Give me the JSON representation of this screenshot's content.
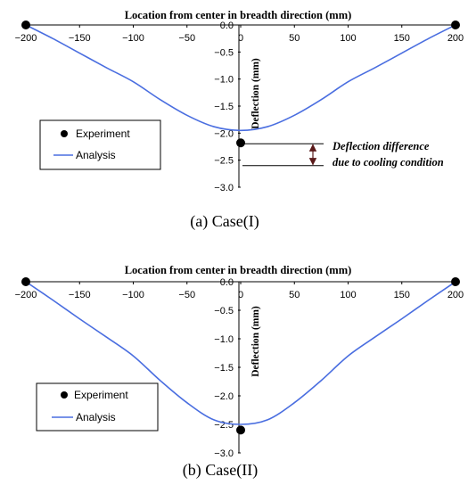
{
  "chart_data": [
    {
      "type": "line",
      "title": "Location from center in breadth direction (mm)",
      "ylabel": "Deflection (mm)",
      "caption": "(a)  Case(I)",
      "xlim": [
        -200,
        200
      ],
      "ylim": [
        -3.0,
        0.0
      ],
      "x_ticks": [
        "-200",
        "-150",
        "-100",
        "-50",
        "0",
        "50",
        "100",
        "150",
        "200"
      ],
      "y_ticks": [
        "0.0",
        "-0.5",
        "-1.0",
        "-1.5",
        "-2.0",
        "-2.5",
        "-3.0"
      ],
      "grid": false,
      "legend": {
        "placement": "left",
        "entries": [
          "Experiment",
          "Analysis"
        ]
      },
      "series": [
        {
          "name": "Analysis",
          "x": [
            -200,
            -175,
            -150,
            -125,
            -100,
            -75,
            -50,
            -25,
            0,
            25,
            50,
            75,
            100,
            125,
            150,
            175,
            200
          ],
          "y": [
            0.0,
            -0.25,
            -0.52,
            -0.79,
            -1.05,
            -1.38,
            -1.67,
            -1.88,
            -1.95,
            -1.88,
            -1.67,
            -1.38,
            -1.05,
            -0.79,
            -0.52,
            -0.25,
            0.0
          ]
        },
        {
          "name": "Experiment",
          "x": [
            -200,
            0,
            200
          ],
          "y": [
            0.0,
            -2.18,
            0.0
          ]
        }
      ],
      "annotation": {
        "line1": "Deflection difference",
        "line2": "due to cooling condition",
        "from_y": -2.18,
        "to_y": -2.6
      },
      "colors": {
        "analysis": "#4a6ee0",
        "experiment": "#000000",
        "arrow": "#5a1a1a"
      }
    },
    {
      "type": "line",
      "title": "Location from center in breadth direction (mm)",
      "ylabel": "Deflection (mm)",
      "caption": "(b)  Case(II)",
      "xlim": [
        -200,
        200
      ],
      "ylim": [
        -3.0,
        0.0
      ],
      "x_ticks": [
        "-200",
        "-150",
        "-100",
        "-50",
        "0",
        "50",
        "100",
        "150",
        "200"
      ],
      "y_ticks": [
        "0.0",
        "-0.5",
        "-1.0",
        "-1.5",
        "-2.0",
        "-2.5",
        "-3.0"
      ],
      "grid": false,
      "legend": {
        "placement": "bottom-left",
        "entries": [
          "Experiment",
          "Analysis"
        ]
      },
      "series": [
        {
          "name": "Analysis",
          "x": [
            -200,
            -175,
            -150,
            -125,
            -100,
            -75,
            -50,
            -25,
            0,
            25,
            50,
            75,
            100,
            125,
            150,
            175,
            200
          ],
          "y": [
            0.0,
            -0.32,
            -0.65,
            -0.97,
            -1.3,
            -1.73,
            -2.12,
            -2.42,
            -2.5,
            -2.42,
            -2.12,
            -1.73,
            -1.3,
            -0.97,
            -0.65,
            -0.32,
            0.0
          ]
        },
        {
          "name": "Experiment",
          "x": [
            -200,
            0,
            200
          ],
          "y": [
            0.0,
            -2.6,
            0.0
          ]
        }
      ],
      "colors": {
        "analysis": "#4a6ee0",
        "experiment": "#000000"
      }
    }
  ]
}
